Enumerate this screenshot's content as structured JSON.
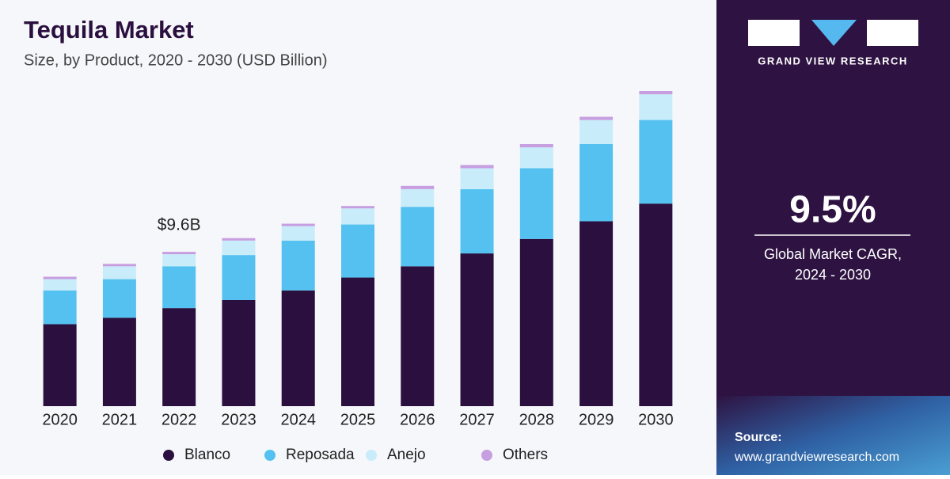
{
  "chart_data": {
    "type": "stacked_bar",
    "title": "Tequila Market",
    "subtitle": "Size, by Product, 2020 - 2030 (USD Billion)",
    "categories": [
      "2020",
      "2021",
      "2022",
      "2023",
      "2024",
      "2025",
      "2026",
      "2027",
      "2028",
      "2029",
      "2030"
    ],
    "series": [
      {
        "name": "Blanco",
        "color": "#2a0f3f",
        "values": [
          5.1,
          5.5,
          6.1,
          6.6,
          7.2,
          8.0,
          8.7,
          9.5,
          10.4,
          11.5,
          12.6
        ]
      },
      {
        "name": "Reposada",
        "color": "#55c1f0",
        "values": [
          2.1,
          2.4,
          2.6,
          2.8,
          3.1,
          3.3,
          3.7,
          4.0,
          4.4,
          4.8,
          5.2
        ]
      },
      {
        "name": "Anejo",
        "color": "#c9ecfa",
        "values": [
          0.7,
          0.8,
          0.75,
          0.9,
          0.9,
          1.0,
          1.1,
          1.3,
          1.3,
          1.5,
          1.6
        ]
      },
      {
        "name": "Others",
        "color": "#c79fe0",
        "values": [
          0.15,
          0.15,
          0.15,
          0.15,
          0.15,
          0.15,
          0.2,
          0.2,
          0.2,
          0.2,
          0.2
        ]
      }
    ],
    "annotations": [
      {
        "text": "$9.6B",
        "x": "2022"
      }
    ],
    "legend": "bottom"
  },
  "sidebar": {
    "brand": "GRAND VIEW RESEARCH",
    "cagr": "9.5%",
    "cagr_caption": [
      "Global Market CAGR,",
      "2024 - 2030"
    ],
    "source_label": "Source:",
    "source_url": "www.grandviewresearch.com"
  }
}
